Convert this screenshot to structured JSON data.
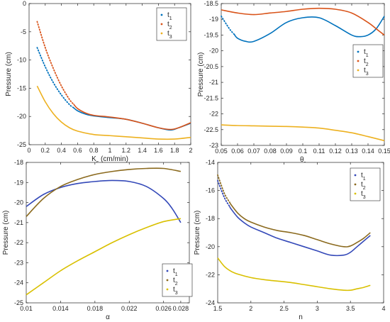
{
  "chart_data": [
    {
      "type": "line",
      "xlabel": "K",
      "xlabel_sub": "s",
      "xlabel_rest": " (cm/min)",
      "ylabel": "Pressure (cm)",
      "xlim": [
        0,
        2
      ],
      "ylim": [
        -25,
        0
      ],
      "xticks": [
        0,
        0.2,
        0.4,
        0.6,
        0.8,
        1,
        1.2,
        1.4,
        1.6,
        1.8,
        2
      ],
      "xtick_labels": [
        "0",
        "0.2",
        "0.4",
        "0.6",
        "0.8",
        "1",
        "1.2",
        "1.4",
        "1.6",
        "1.8",
        "2"
      ],
      "yticks": [
        -25,
        -20,
        -15,
        -10,
        -5,
        0
      ],
      "ytick_labels": [
        "-25",
        "-20",
        "-15",
        "-10",
        "-5",
        "0"
      ],
      "legend_position": "top-right",
      "series": [
        {
          "name": "t",
          "name_sub": "1",
          "color": "#0072BD",
          "dotted_until": 0.55,
          "x": [
            0.1,
            0.2,
            0.3,
            0.4,
            0.5,
            0.6,
            0.7,
            0.8,
            1.0,
            1.2,
            1.4,
            1.6,
            1.75,
            1.85,
            2.0
          ],
          "y": [
            -7.8,
            -11.2,
            -14.0,
            -16.2,
            -17.9,
            -19.0,
            -19.6,
            -19.9,
            -20.2,
            -20.5,
            -21.2,
            -22.0,
            -22.4,
            -22.0,
            -21.2
          ]
        },
        {
          "name": "t",
          "name_sub": "2",
          "color": "#D95319",
          "dotted_until": 0.55,
          "x": [
            0.1,
            0.2,
            0.3,
            0.4,
            0.5,
            0.6,
            0.7,
            0.8,
            1.0,
            1.2,
            1.4,
            1.6,
            1.75,
            1.85,
            2.0
          ],
          "y": [
            -3.2,
            -7.8,
            -11.5,
            -14.6,
            -17.0,
            -18.6,
            -19.4,
            -19.8,
            -20.1,
            -20.5,
            -21.2,
            -22.0,
            -22.3,
            -22.0,
            -21.1
          ]
        },
        {
          "name": "t",
          "name_sub": "3",
          "color": "#EDB120",
          "dotted_until": 0,
          "x": [
            0.1,
            0.2,
            0.3,
            0.4,
            0.5,
            0.6,
            0.8,
            1.0,
            1.2,
            1.4,
            1.6,
            1.8,
            2.0
          ],
          "y": [
            -14.6,
            -17.4,
            -19.5,
            -21.0,
            -22.0,
            -22.6,
            -23.2,
            -23.4,
            -23.6,
            -23.8,
            -24.0,
            -24.0,
            -23.7
          ]
        }
      ]
    },
    {
      "type": "line",
      "xlabel": "θ",
      "xlabel_sub": "r",
      "xlabel_rest": "",
      "ylabel": "Pressure (cm)",
      "xlim": [
        0.05,
        0.15
      ],
      "ylim": [
        -23,
        -18.5
      ],
      "xticks": [
        0.05,
        0.06,
        0.07,
        0.08,
        0.09,
        0.1,
        0.11,
        0.12,
        0.13,
        0.14,
        0.15
      ],
      "xtick_labels": [
        "0.05",
        "0.06",
        "0.07",
        "0.08",
        "0.09",
        "0.1",
        "0.11",
        "0.12",
        "0.13",
        "0.14",
        "0.15"
      ],
      "yticks": [
        -23,
        -22.5,
        -22,
        -21.5,
        -21,
        -20.5,
        -20,
        -19.5,
        -19,
        -18.5
      ],
      "ytick_labels": [
        "-23",
        "-22.5",
        "-22",
        "-21.5",
        "-21",
        "-20.5",
        "-20",
        "-19.5",
        "-19",
        "-18.5"
      ],
      "legend_position": "middle-right",
      "series": [
        {
          "name": "t",
          "name_sub": "1",
          "color": "#0072BD",
          "dotted_until": 0.058,
          "x": [
            0.05,
            0.055,
            0.06,
            0.065,
            0.07,
            0.08,
            0.09,
            0.1,
            0.11,
            0.12,
            0.13,
            0.135,
            0.14,
            0.145,
            0.15
          ],
          "y": [
            -18.9,
            -19.3,
            -19.6,
            -19.7,
            -19.7,
            -19.45,
            -19.1,
            -18.95,
            -18.95,
            -19.2,
            -19.5,
            -19.55,
            -19.5,
            -19.3,
            -18.9
          ]
        },
        {
          "name": "t",
          "name_sub": "2",
          "color": "#D95319",
          "dotted_until": 0,
          "x": [
            0.05,
            0.06,
            0.07,
            0.08,
            0.09,
            0.1,
            0.11,
            0.12,
            0.13,
            0.14,
            0.145,
            0.15
          ],
          "y": [
            -18.7,
            -18.8,
            -18.85,
            -18.8,
            -18.75,
            -18.68,
            -18.65,
            -18.68,
            -18.8,
            -19.1,
            -19.3,
            -19.5
          ]
        },
        {
          "name": "t",
          "name_sub": "3",
          "color": "#EDB120",
          "dotted_until": 0,
          "x": [
            0.05,
            0.06,
            0.07,
            0.08,
            0.09,
            0.1,
            0.11,
            0.12,
            0.13,
            0.14,
            0.15
          ],
          "y": [
            -22.35,
            -22.37,
            -22.38,
            -22.39,
            -22.4,
            -22.42,
            -22.45,
            -22.52,
            -22.6,
            -22.72,
            -22.85
          ]
        }
      ]
    },
    {
      "type": "line",
      "xlabel": "α",
      "xlabel_sub": "",
      "xlabel_rest": "",
      "ylabel": "Pressure (cm)",
      "xlim": [
        0.01,
        0.029
      ],
      "ylim": [
        -25,
        -18
      ],
      "xticks": [
        0.01,
        0.014,
        0.018,
        0.022,
        0.026,
        0.028
      ],
      "xtick_labels": [
        "0.01",
        "0.014",
        "0.018",
        "0.022",
        "0.026",
        "0.028"
      ],
      "yticks": [
        -25,
        -24,
        -23,
        -22,
        -21,
        -20,
        -19,
        -18
      ],
      "ytick_labels": [
        "-25",
        "-24",
        "-23",
        "-22",
        "-21",
        "-20",
        "-19",
        "-18"
      ],
      "legend_position": "bottom-right",
      "series": [
        {
          "name": "t",
          "name_sub": "1",
          "color": "#3348B8",
          "dotted_until": 0,
          "x": [
            0.01,
            0.012,
            0.014,
            0.016,
            0.018,
            0.02,
            0.022,
            0.024,
            0.026,
            0.027,
            0.028
          ],
          "y": [
            -20.2,
            -19.6,
            -19.25,
            -19.05,
            -18.95,
            -18.9,
            -18.95,
            -19.2,
            -19.8,
            -20.3,
            -21.0
          ]
        },
        {
          "name": "t",
          "name_sub": "2",
          "color": "#8B6A1E",
          "dotted_until": 0,
          "x": [
            0.01,
            0.012,
            0.014,
            0.016,
            0.018,
            0.02,
            0.022,
            0.024,
            0.026,
            0.028
          ],
          "y": [
            -20.7,
            -19.8,
            -19.2,
            -18.85,
            -18.6,
            -18.45,
            -18.35,
            -18.3,
            -18.3,
            -18.45
          ]
        },
        {
          "name": "t",
          "name_sub": "3",
          "color": "#D9C000",
          "dotted_until": 0,
          "x": [
            0.01,
            0.012,
            0.014,
            0.016,
            0.018,
            0.02,
            0.022,
            0.024,
            0.026,
            0.028
          ],
          "y": [
            -24.6,
            -24.0,
            -23.4,
            -22.9,
            -22.45,
            -22.0,
            -21.6,
            -21.25,
            -20.95,
            -20.8
          ]
        }
      ]
    },
    {
      "type": "line",
      "xlabel": "n",
      "xlabel_sub": "",
      "xlabel_rest": "",
      "ylabel": "Pressure (cm)",
      "xlim": [
        1.5,
        4
      ],
      "ylim": [
        -24,
        -14
      ],
      "xticks": [
        1.5,
        2,
        2.5,
        3,
        3.5,
        4
      ],
      "xtick_labels": [
        "1.5",
        "2",
        "2.5",
        "3",
        "3.5",
        "4"
      ],
      "yticks": [
        -24,
        -22,
        -20,
        -18,
        -16,
        -14
      ],
      "ytick_labels": [
        "-24",
        "-22",
        "-20",
        "-18",
        "-16",
        "-14"
      ],
      "legend_position": "top-right",
      "series": [
        {
          "name": "t",
          "name_sub": "1",
          "color": "#3348B8",
          "dotted_until": 1.68,
          "x": [
            1.5,
            1.6,
            1.7,
            1.8,
            1.9,
            2.0,
            2.2,
            2.4,
            2.6,
            2.8,
            3.0,
            3.2,
            3.4,
            3.5,
            3.6,
            3.7,
            3.8
          ],
          "y": [
            -15.3,
            -16.5,
            -17.3,
            -17.9,
            -18.3,
            -18.6,
            -19.0,
            -19.4,
            -19.7,
            -20.0,
            -20.3,
            -20.6,
            -20.6,
            -20.4,
            -20.0,
            -19.6,
            -19.2
          ]
        },
        {
          "name": "t",
          "name_sub": "2",
          "color": "#8B6A1E",
          "dotted_until": 1.68,
          "x": [
            1.5,
            1.6,
            1.7,
            1.8,
            1.9,
            2.0,
            2.2,
            2.4,
            2.6,
            2.8,
            3.0,
            3.2,
            3.4,
            3.5,
            3.6,
            3.7,
            3.8
          ],
          "y": [
            -14.9,
            -16.2,
            -17.0,
            -17.6,
            -18.0,
            -18.25,
            -18.6,
            -18.85,
            -19.0,
            -19.2,
            -19.5,
            -19.8,
            -20.0,
            -19.95,
            -19.7,
            -19.4,
            -19.0
          ]
        },
        {
          "name": "t",
          "name_sub": "3",
          "color": "#D9C000",
          "dotted_until": 0,
          "x": [
            1.5,
            1.6,
            1.7,
            1.8,
            2.0,
            2.2,
            2.4,
            2.6,
            2.8,
            3.0,
            3.2,
            3.4,
            3.5,
            3.6,
            3.7,
            3.8
          ],
          "y": [
            -20.8,
            -21.4,
            -21.75,
            -21.95,
            -22.2,
            -22.35,
            -22.45,
            -22.55,
            -22.7,
            -22.85,
            -23.0,
            -23.1,
            -23.1,
            -23.0,
            -22.9,
            -22.75
          ]
        }
      ]
    }
  ]
}
